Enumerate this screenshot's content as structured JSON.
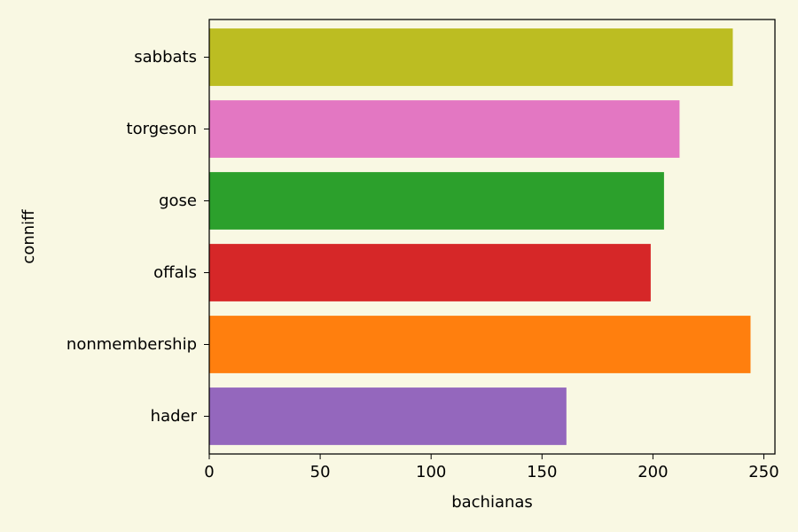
{
  "chart_data": {
    "type": "bar",
    "orientation": "horizontal",
    "title": "",
    "xlabel": "bachianas",
    "ylabel": "conniff",
    "xlim": [
      0,
      255
    ],
    "x_ticks": [
      0,
      50,
      100,
      150,
      200,
      250
    ],
    "grid": false,
    "categories": [
      "hader",
      "nonmembership",
      "offals",
      "gose",
      "torgeson",
      "sabbats"
    ],
    "values": [
      161,
      244,
      199,
      205,
      212,
      236
    ],
    "colors": [
      "#9467bd",
      "#ff7f0e",
      "#d62728",
      "#2ca02c",
      "#e377c2",
      "#bcbd22"
    ]
  },
  "colors": {
    "background": "#f9f8e3",
    "axes": "#000000"
  }
}
